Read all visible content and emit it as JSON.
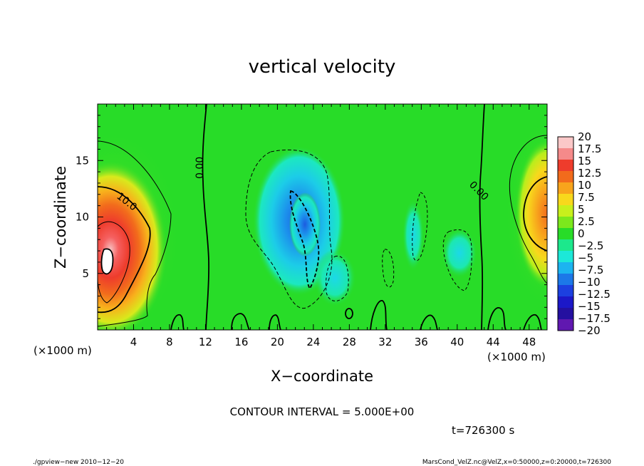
{
  "chart_data": {
    "type": "heatmap",
    "title": "vertical velocity",
    "xlabel": "X−coordinate",
    "ylabel": "Z−coordinate",
    "x_unit_left": "(×1000 m)",
    "x_unit_right": "(×1000 m)",
    "xlim": [
      0,
      50
    ],
    "ylim": [
      0,
      20
    ],
    "x_ticks": [
      4,
      8,
      12,
      16,
      20,
      24,
      28,
      32,
      36,
      40,
      44,
      48
    ],
    "x_tick_labels": [
      "4",
      "8",
      "12",
      "16",
      "20",
      "24",
      "28",
      "32",
      "36",
      "40",
      "44",
      "48"
    ],
    "y_ticks": [
      5,
      10,
      15
    ],
    "y_tick_labels": [
      "5",
      "10",
      "15"
    ],
    "colorbar": {
      "levels": [
        20,
        17.5,
        15,
        12.5,
        10,
        7.5,
        5,
        2.5,
        0,
        -2.5,
        -5,
        -7.5,
        -10,
        -12.5,
        -15,
        -17.5,
        -20
      ],
      "labels": [
        "20",
        "17.5",
        "15",
        "12.5",
        "10",
        "7.5",
        "5",
        "2.5",
        "0",
        "−2.5",
        "−5",
        "−7.5",
        "−10",
        "−12.5",
        "−15",
        "−17.5",
        "−20"
      ],
      "colors": [
        "#fbc8c8",
        "#f58a8a",
        "#ee3c2c",
        "#f26b1c",
        "#f8a41c",
        "#f8d81c",
        "#c8f01c",
        "#7ce81c",
        "#28dc28",
        "#1ce88c",
        "#1ce8d8",
        "#1cb4f0",
        "#1c78e8",
        "#1c40e0",
        "#1c18c8",
        "#2410a0",
        "#6018b0"
      ]
    },
    "contour_labels": [
      "10.0",
      "0.00",
      "0.00"
    ],
    "contour_interval_text": "CONTOUR INTERVAL = 5.000E+00",
    "time_text": "t=726300 s"
  },
  "footer": {
    "left": "./gpview−new 2010−12−20",
    "right": "MarsCond_VelZ.nc@VelZ,x=0:50000,z=0:20000,t=726300"
  }
}
